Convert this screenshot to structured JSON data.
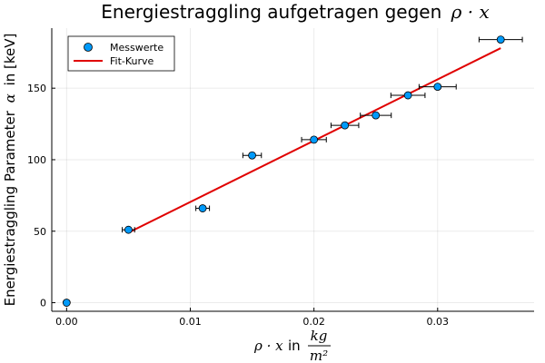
{
  "chart_data": {
    "type": "scatter",
    "title_prefix": "Energiestraggling aufgetragen gegen",
    "title_math": "ρ · x",
    "xlabel_prefix": "ρ · x",
    "xlabel_in": "in",
    "xlabel_unit_num": "kg",
    "xlabel_unit_den": "m²",
    "ylabel_prefix": "Energiestraggling Parameter",
    "ylabel_math": "α",
    "ylabel_suffix": "in [keV]",
    "xlim": [
      -0.0012,
      0.0378
    ],
    "ylim": [
      -6,
      192
    ],
    "xticks": [
      0.0,
      0.01,
      0.02,
      0.03
    ],
    "xtick_labels": [
      "0.00",
      "0.01",
      "0.02",
      "0.03"
    ],
    "yticks": [
      0,
      50,
      100,
      150
    ],
    "ytick_labels": [
      "0",
      "50",
      "100",
      "150"
    ],
    "grid": true,
    "legend_position": "top-left",
    "series": [
      {
        "name": "Messwerte",
        "type": "scatter",
        "color": "#009AFA",
        "points": [
          {
            "x": 0.0,
            "y": 0,
            "xerr": 0.0
          },
          {
            "x": 0.005,
            "y": 51,
            "xerr": 0.0005
          },
          {
            "x": 0.011,
            "y": 66,
            "xerr": 0.00055
          },
          {
            "x": 0.015,
            "y": 103,
            "xerr": 0.00075
          },
          {
            "x": 0.02,
            "y": 114,
            "xerr": 0.001
          },
          {
            "x": 0.0225,
            "y": 124,
            "xerr": 0.00112
          },
          {
            "x": 0.025,
            "y": 131,
            "xerr": 0.00125
          },
          {
            "x": 0.0276,
            "y": 145,
            "xerr": 0.00138
          },
          {
            "x": 0.03,
            "y": 151,
            "xerr": 0.0015
          },
          {
            "x": 0.0351,
            "y": 184,
            "xerr": 0.00175
          }
        ]
      },
      {
        "name": "Fit-Kurve",
        "type": "line",
        "color": "#E00000",
        "points": [
          {
            "x": 0.005,
            "y": 49
          },
          {
            "x": 0.0351,
            "y": 178
          }
        ]
      }
    ]
  }
}
